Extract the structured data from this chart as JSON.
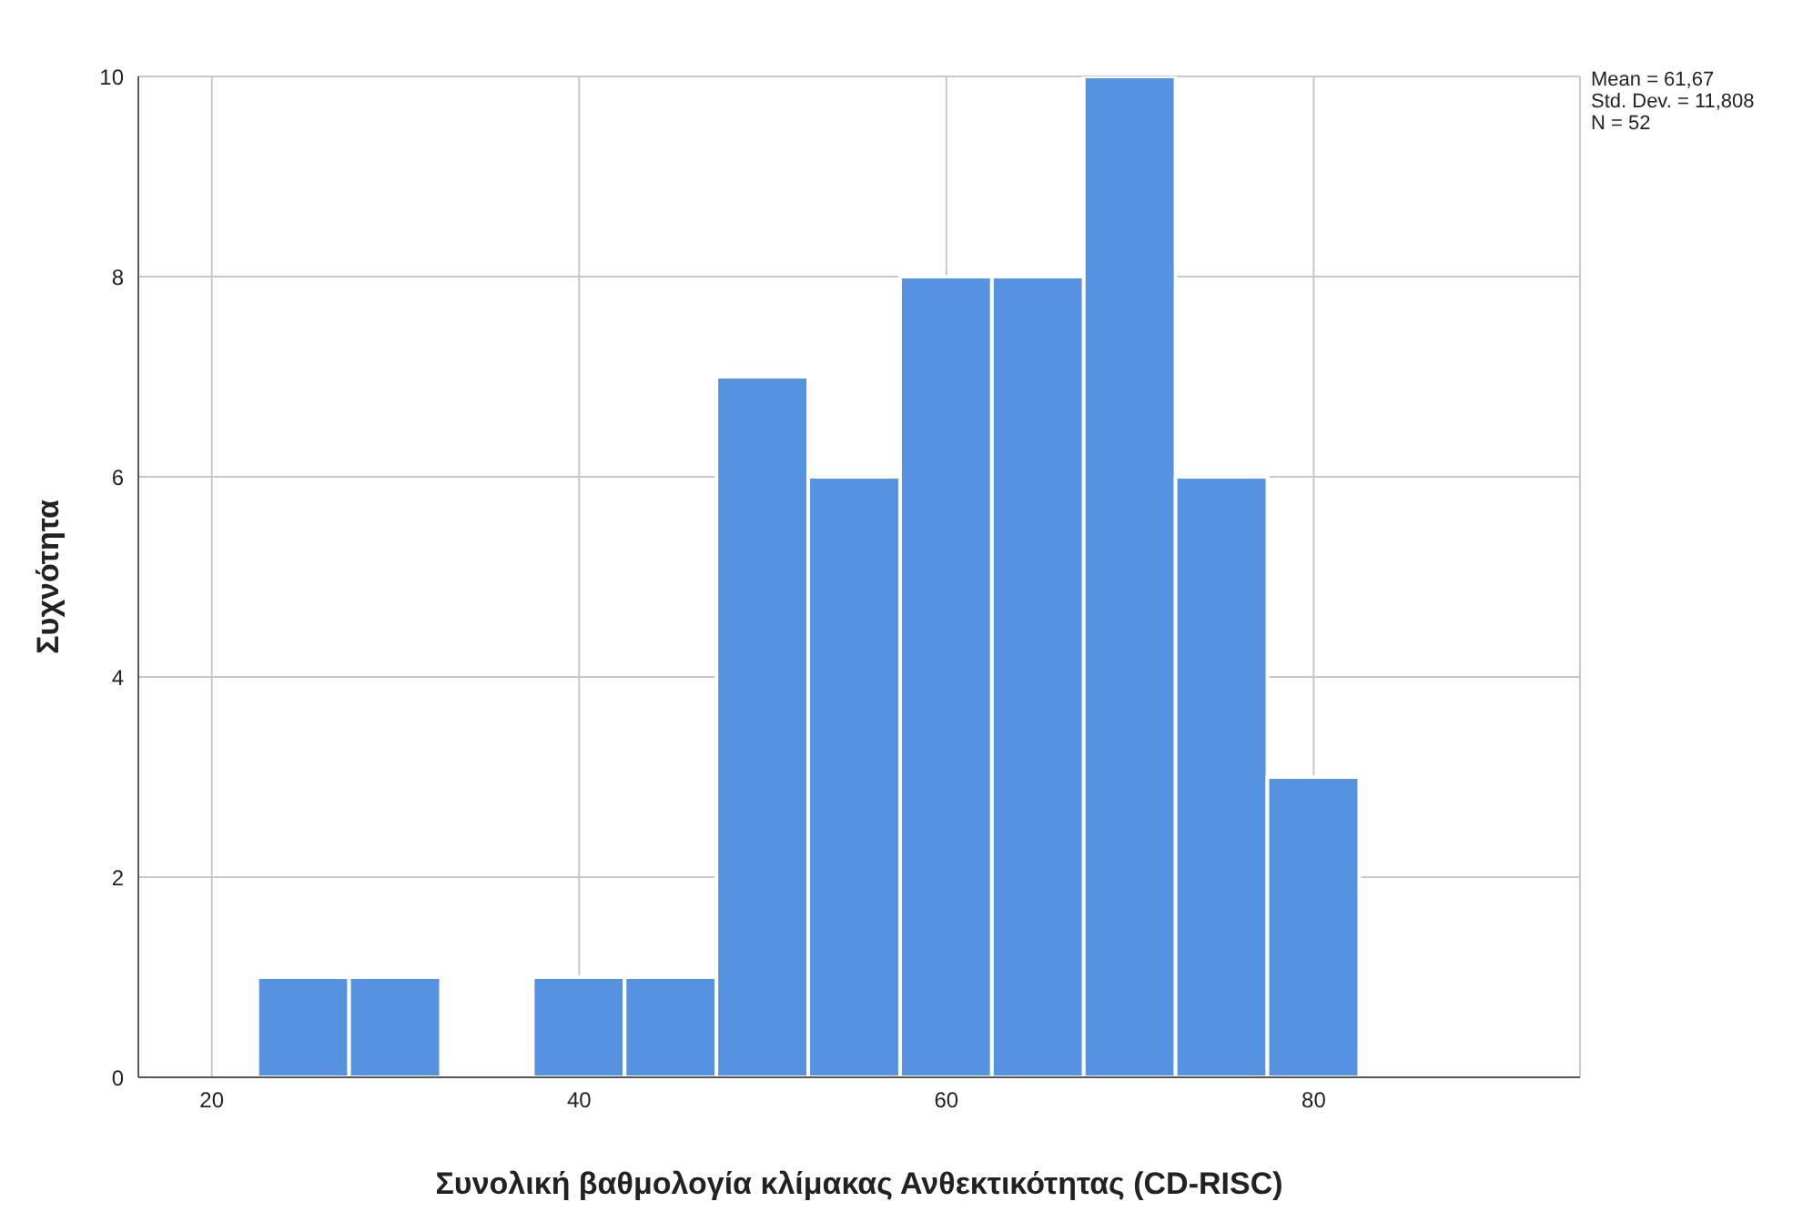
{
  "chart_data": {
    "type": "histogram",
    "xlabel": "Συνολική βαθμολογία κλίμακας Ανθεκτικότητας (CD-RISC)",
    "ylabel": "Συχνότητα",
    "bins": [
      22.5,
      27.5,
      32.5,
      37.5,
      42.5,
      47.5,
      52.5,
      57.5,
      62.5,
      67.5,
      72.5,
      77.5,
      82.5
    ],
    "values": [
      1,
      1,
      0,
      1,
      1,
      7,
      6,
      8,
      8,
      10,
      6,
      3
    ],
    "color": "#5593e1",
    "xlim": [
      16,
      94.5
    ],
    "xticks": [
      20,
      40,
      60,
      80
    ],
    "ylim": [
      0,
      10
    ],
    "yticks": [
      0,
      2,
      4,
      6,
      8,
      10
    ],
    "grid": true,
    "annotations": [
      "Mean = 61,67",
      "Std. Dev. = 11,808",
      "N = 52"
    ]
  }
}
